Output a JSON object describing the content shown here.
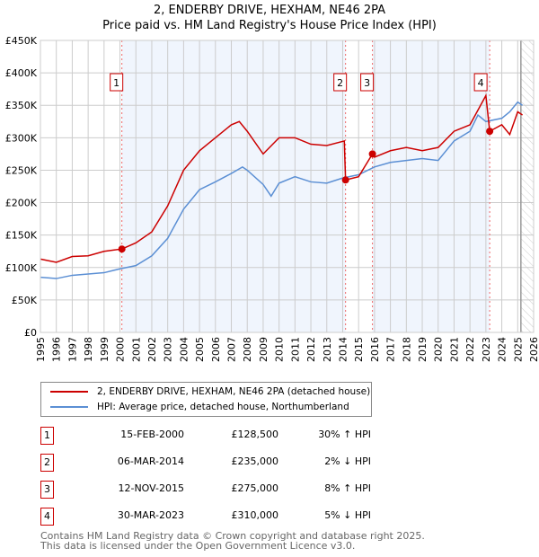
{
  "chart_data": {
    "type": "line",
    "title": "2, ENDERBY DRIVE, HEXHAM, NE46 2PA",
    "subtitle": "Price paid vs. HM Land Registry's House Price Index (HPI)",
    "xlim": [
      1995,
      2026
    ],
    "ylim": [
      0,
      450000
    ],
    "x_ticks": [
      "1995",
      "1996",
      "1997",
      "1998",
      "1999",
      "2000",
      "2001",
      "2002",
      "2003",
      "2004",
      "2005",
      "2006",
      "2007",
      "2008",
      "2009",
      "2010",
      "2011",
      "2012",
      "2013",
      "2014",
      "2015",
      "2016",
      "2017",
      "2018",
      "2019",
      "2020",
      "2021",
      "2022",
      "2023",
      "2024",
      "2025",
      "2026"
    ],
    "y_ticks": [
      "£0",
      "£50K",
      "£100K",
      "£150K",
      "£200K",
      "£250K",
      "£300K",
      "£350K",
      "£400K",
      "£450K"
    ],
    "grid": true,
    "series": [
      {
        "name": "2, ENDERBY DRIVE, HEXHAM, NE46 2PA (detached house)",
        "color": "#cc0000",
        "x": [
          1995,
          1996,
          1997,
          1998,
          1999,
          2000.12,
          2001,
          2002,
          2003,
          2004,
          2005,
          2006,
          2007,
          2007.5,
          2008,
          2009,
          2010,
          2011,
          2012,
          2013,
          2014.1,
          2014.18,
          2015,
          2015.87,
          2016,
          2017,
          2018,
          2019,
          2020,
          2021,
          2022,
          2023,
          2023.24,
          2024,
          2024.5,
          2025,
          2025.3
        ],
        "y": [
          113000,
          108000,
          117000,
          118000,
          125000,
          128500,
          138000,
          155000,
          195000,
          250000,
          280000,
          300000,
          320000,
          325000,
          310000,
          275000,
          300000,
          300000,
          290000,
          288000,
          295000,
          235000,
          240000,
          275000,
          270000,
          280000,
          285000,
          280000,
          285000,
          310000,
          320000,
          365000,
          310000,
          320000,
          305000,
          340000,
          335000
        ]
      },
      {
        "name": "HPI: Average price, detached house, Northumberland",
        "color": "#5b8fd4",
        "x": [
          1995,
          1996,
          1997,
          1998,
          1999,
          2000,
          2001,
          2002,
          2003,
          2004,
          2005,
          2006,
          2007,
          2007.7,
          2008,
          2009,
          2009.5,
          2010,
          2011,
          2012,
          2013,
          2014,
          2015,
          2016,
          2017,
          2018,
          2019,
          2020,
          2021,
          2022,
          2022.5,
          2023,
          2024,
          2024.5,
          2025,
          2025.3
        ],
        "y": [
          85000,
          83000,
          88000,
          90000,
          92000,
          98000,
          103000,
          118000,
          145000,
          190000,
          220000,
          232000,
          245000,
          255000,
          250000,
          228000,
          210000,
          230000,
          240000,
          232000,
          230000,
          238000,
          243000,
          255000,
          262000,
          265000,
          268000,
          265000,
          295000,
          310000,
          335000,
          325000,
          330000,
          340000,
          355000,
          350000
        ]
      }
    ],
    "sales": [
      {
        "n": "1",
        "x": 2000.12,
        "date": "15-FEB-2000",
        "price": "£128,500",
        "value": 128500,
        "hpi": "30% ↑ HPI"
      },
      {
        "n": "2",
        "x": 2014.18,
        "date": "06-MAR-2014",
        "price": "£235,000",
        "value": 235000,
        "hpi": "2% ↓ HPI"
      },
      {
        "n": "3",
        "x": 2015.87,
        "date": "12-NOV-2015",
        "price": "£275,000",
        "value": 275000,
        "hpi": "8% ↑ HPI"
      },
      {
        "n": "4",
        "x": 2023.24,
        "date": "30-MAR-2023",
        "price": "£310,000",
        "value": 310000,
        "hpi": "5% ↓ HPI"
      }
    ],
    "legend_position": "below"
  },
  "footer": [
    "Contains HM Land Registry data © Crown copyright and database right 2025.",
    "This data is licensed under the Open Government Licence v3.0."
  ]
}
